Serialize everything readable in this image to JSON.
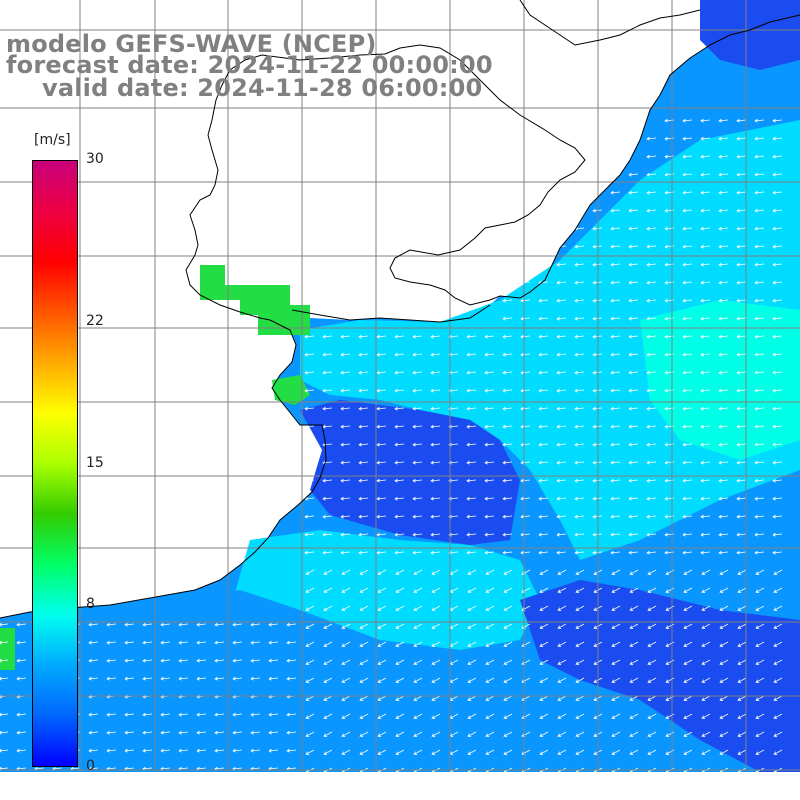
{
  "titles": {
    "line1": "modelo GEFS-WAVE (NCEP)",
    "line2": "forecast date: 2024-11-22 00:00:00",
    "line3": "valid date: 2024-11-28 06:00:00"
  },
  "colorbar": {
    "unit": "[m/s]",
    "ticks": [
      {
        "label": "30",
        "value": 30
      },
      {
        "label": "22",
        "value": 22
      },
      {
        "label": "15",
        "value": 15
      },
      {
        "label": "8",
        "value": 8
      },
      {
        "label": "0",
        "value": 0
      }
    ],
    "range": [
      0,
      30
    ],
    "colors": [
      "#0000ff",
      "#0066ff",
      "#00aaff",
      "#00ffee",
      "#00ff66",
      "#33cc00",
      "#aaff00",
      "#ffff00",
      "#ffaa00",
      "#ff5500",
      "#ff0000",
      "#ee0044",
      "#c8007a"
    ]
  },
  "map": {
    "ocean_colors": {
      "strong": "#1a4cf0",
      "medium": "#0a96ff",
      "light": "#00dcff",
      "cyan": "#00ffe6",
      "green": "#22dd44"
    },
    "land_color": "#ffffff",
    "grid_color": "#808080",
    "vector_color": "#ffffff"
  }
}
